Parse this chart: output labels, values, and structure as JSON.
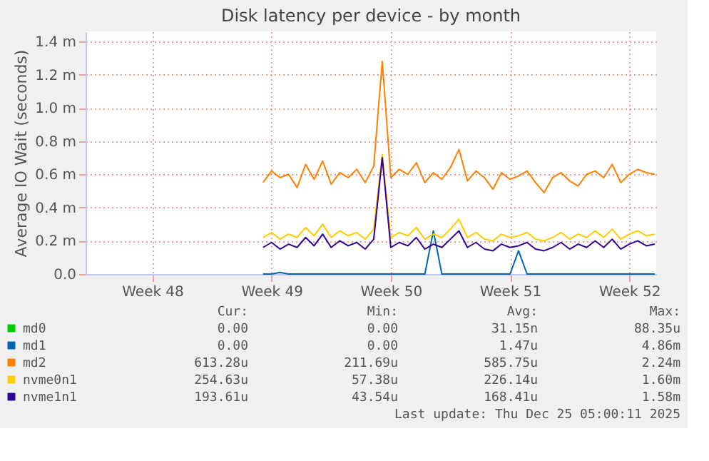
{
  "chart_data": {
    "type": "line",
    "title": "Disk latency per device - by month",
    "ylabel": "Average IO Wait (seconds)",
    "x": [
      "2025-11-30T12:00",
      "2025-12-01T00:00",
      "2025-12-01T12:00",
      "2025-12-02T00:00",
      "2025-12-02T12:00",
      "2025-12-03T00:00",
      "2025-12-03T12:00",
      "2025-12-04T00:00",
      "2025-12-04T12:00",
      "2025-12-05T00:00",
      "2025-12-05T12:00",
      "2025-12-06T00:00",
      "2025-12-06T12:00",
      "2025-12-07T00:00",
      "2025-12-07T12:00",
      "2025-12-08T00:00",
      "2025-12-08T12:00",
      "2025-12-09T00:00",
      "2025-12-09T12:00",
      "2025-12-10T00:00",
      "2025-12-10T12:00",
      "2025-12-11T00:00",
      "2025-12-11T12:00",
      "2025-12-12T00:00",
      "2025-12-12T12:00",
      "2025-12-13T00:00",
      "2025-12-13T12:00",
      "2025-12-14T00:00",
      "2025-12-14T12:00",
      "2025-12-15T00:00",
      "2025-12-15T12:00",
      "2025-12-16T00:00",
      "2025-12-16T12:00",
      "2025-12-17T00:00",
      "2025-12-17T12:00",
      "2025-12-18T00:00",
      "2025-12-18T12:00",
      "2025-12-19T00:00",
      "2025-12-19T12:00",
      "2025-12-20T00:00",
      "2025-12-20T12:00",
      "2025-12-21T00:00",
      "2025-12-21T12:00",
      "2025-12-22T00:00",
      "2025-12-22T12:00",
      "2025-12-23T00:00",
      "2025-12-23T12:00"
    ],
    "series": [
      {
        "name": "md0",
        "color": "#00cc00",
        "values": [
          null,
          null,
          null,
          null,
          null,
          null,
          null,
          null,
          null,
          null,
          null,
          null,
          null,
          null,
          null,
          null,
          null,
          null,
          null,
          null,
          null,
          null,
          null,
          null,
          null,
          null,
          null,
          null,
          null,
          null,
          null,
          null,
          null,
          null,
          null,
          null,
          null,
          null,
          null,
          null,
          null,
          null,
          null,
          null,
          null,
          null,
          null
        ]
      },
      {
        "name": "md1",
        "color": "#0066b3",
        "values": [
          0,
          0,
          0.01,
          0,
          0,
          0,
          0,
          0,
          0,
          0,
          0,
          0,
          0,
          0,
          0,
          0,
          0,
          0,
          0,
          0,
          0.26,
          0,
          0,
          0,
          0,
          0,
          0,
          0,
          0,
          0,
          0.14,
          0,
          0,
          0,
          0,
          0,
          0,
          0,
          0,
          0,
          0,
          0,
          0,
          0,
          0,
          0,
          0
        ]
      },
      {
        "name": "md2",
        "color": "#ff8000",
        "values": [
          0.55,
          0.62,
          0.58,
          0.6,
          0.52,
          0.66,
          0.57,
          0.68,
          0.54,
          0.61,
          0.58,
          0.63,
          0.55,
          0.65,
          1.28,
          0.58,
          0.63,
          0.6,
          0.67,
          0.55,
          0.61,
          0.57,
          0.64,
          0.75,
          0.56,
          0.62,
          0.58,
          0.51,
          0.61,
          0.57,
          0.59,
          0.62,
          0.55,
          0.49,
          0.58,
          0.61,
          0.56,
          0.53,
          0.6,
          0.62,
          0.58,
          0.66,
          0.55,
          0.6,
          0.63,
          0.61,
          0.6
        ]
      },
      {
        "name": "nvme0n1",
        "color": "#ffcc00",
        "values": [
          0.22,
          0.25,
          0.21,
          0.24,
          0.22,
          0.28,
          0.23,
          0.3,
          0.22,
          0.26,
          0.23,
          0.25,
          0.21,
          0.27,
          0.72,
          0.22,
          0.25,
          0.23,
          0.28,
          0.21,
          0.24,
          0.22,
          0.27,
          0.33,
          0.22,
          0.25,
          0.21,
          0.2,
          0.24,
          0.22,
          0.23,
          0.25,
          0.21,
          0.2,
          0.22,
          0.25,
          0.21,
          0.24,
          0.22,
          0.26,
          0.22,
          0.27,
          0.21,
          0.24,
          0.26,
          0.23,
          0.24
        ]
      },
      {
        "name": "nvme1n1",
        "color": "#330099",
        "values": [
          0.16,
          0.19,
          0.15,
          0.18,
          0.16,
          0.22,
          0.17,
          0.24,
          0.16,
          0.2,
          0.17,
          0.19,
          0.15,
          0.21,
          0.7,
          0.16,
          0.19,
          0.17,
          0.22,
          0.15,
          0.18,
          0.16,
          0.21,
          0.26,
          0.16,
          0.19,
          0.15,
          0.14,
          0.18,
          0.16,
          0.17,
          0.19,
          0.15,
          0.14,
          0.16,
          0.19,
          0.15,
          0.18,
          0.16,
          0.2,
          0.16,
          0.21,
          0.15,
          0.18,
          0.2,
          0.17,
          0.18
        ]
      }
    ],
    "xlim": [
      "2025-11-20T02:00",
      "2025-12-23T14:00"
    ],
    "xticks": [
      {
        "value": "2025-11-24",
        "label": "Week 48"
      },
      {
        "value": "2025-12-01",
        "label": "Week 49"
      },
      {
        "value": "2025-12-08",
        "label": "Week 50"
      },
      {
        "value": "2025-12-15",
        "label": "Week 51"
      },
      {
        "value": "2025-12-22",
        "label": "Week 52"
      }
    ],
    "ylim": [
      0,
      1.46
    ],
    "yticks": [
      {
        "value": 0,
        "label": "0.0"
      },
      {
        "value": 0.2,
        "label": "0.2 m"
      },
      {
        "value": 0.4,
        "label": "0.4 m"
      },
      {
        "value": 0.6,
        "label": "0.6 m"
      },
      {
        "value": 0.8,
        "label": "0.8 m"
      },
      {
        "value": 1.0,
        "label": "1.0 m"
      },
      {
        "value": 1.2,
        "label": "1.2 m"
      },
      {
        "value": 1.4,
        "label": "1.4 m"
      }
    ],
    "grid": true,
    "legend": "bottom",
    "line_style": "solid",
    "annotations": [
      "Cur:",
      "Min:",
      "Avg:",
      "Max:",
      "0.00",
      "0.00",
      "31.15n",
      "88.35u",
      "0.00",
      "0.00",
      "1.47u",
      "4.86m",
      "613.28u",
      "211.69u",
      "585.75u",
      "2.24m",
      "254.63u",
      "57.38u",
      "226.14u",
      "1.60m",
      "193.61u",
      "43.54u",
      "168.41u",
      "1.58m",
      "Last update: Thu Dec 25 05:00:11 2025"
    ]
  }
}
